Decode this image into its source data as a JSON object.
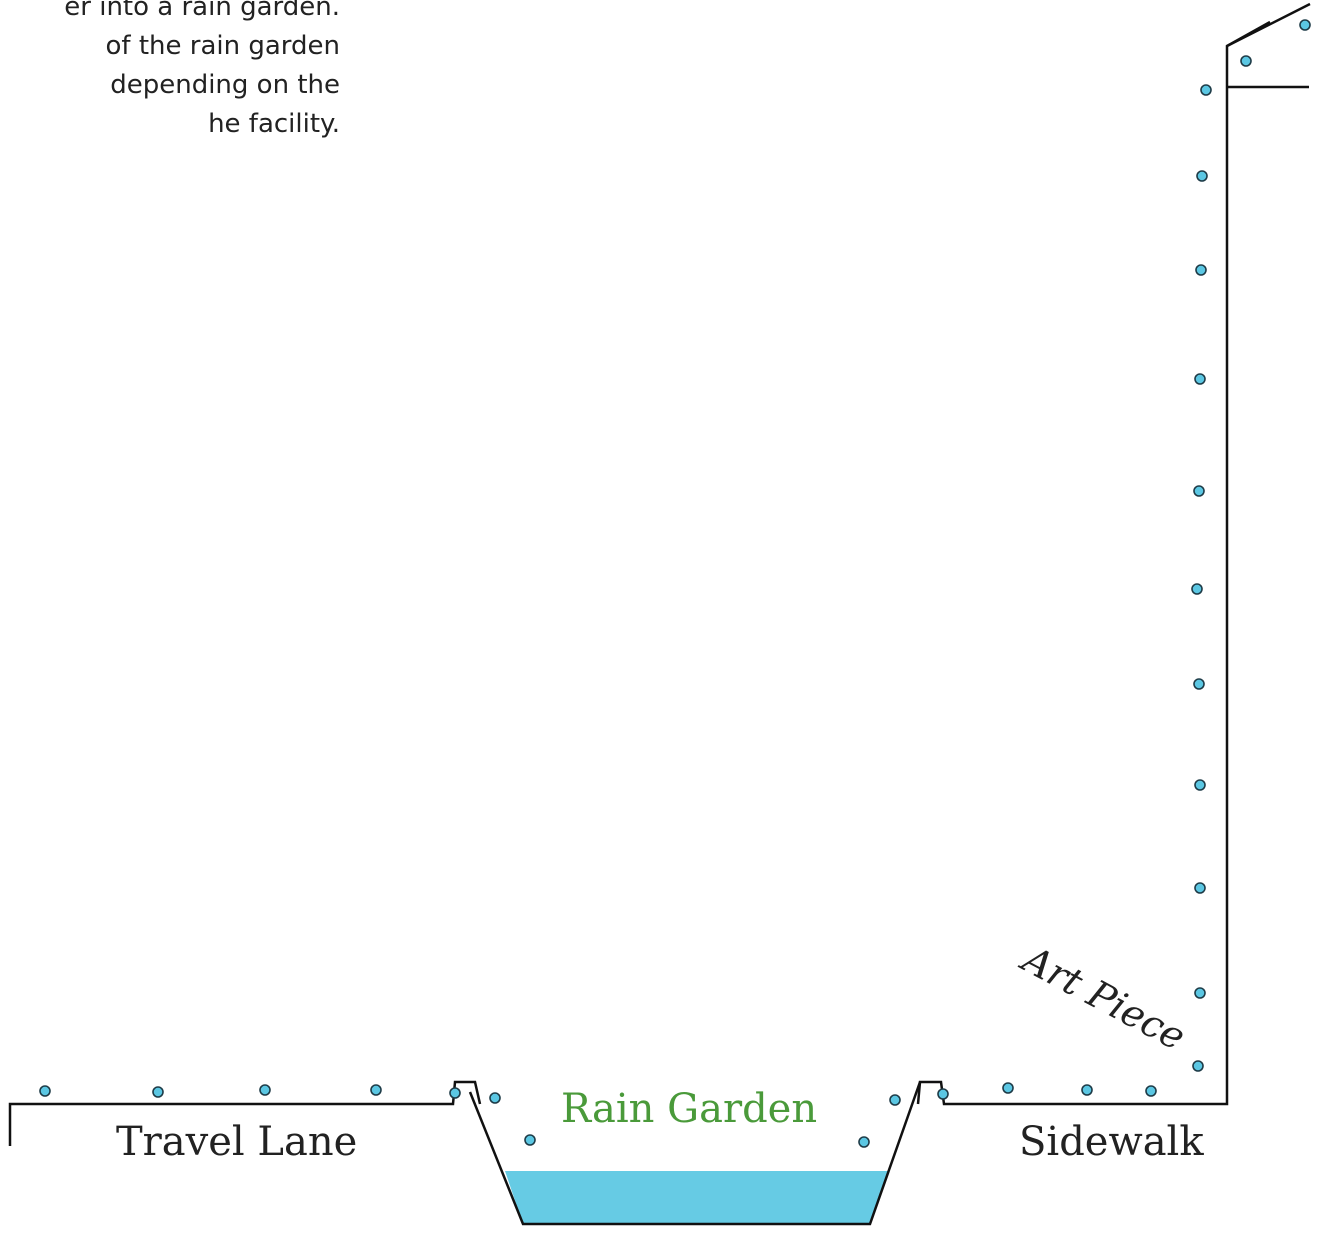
{
  "description": {
    "lines": [
      "er into a rain garden.",
      "of the rain garden",
      "depending on the",
      "he facility."
    ]
  },
  "labels": {
    "travel_lane": "Travel Lane",
    "rain_garden": "Rain Garden",
    "sidewalk": "Sidewalk",
    "art_piece": "Art Piece"
  },
  "colors": {
    "water": "#66cbe4",
    "droplet": "#5bc7e3",
    "rain_garden_label": "#4a9a3a",
    "outline": "#111111"
  }
}
